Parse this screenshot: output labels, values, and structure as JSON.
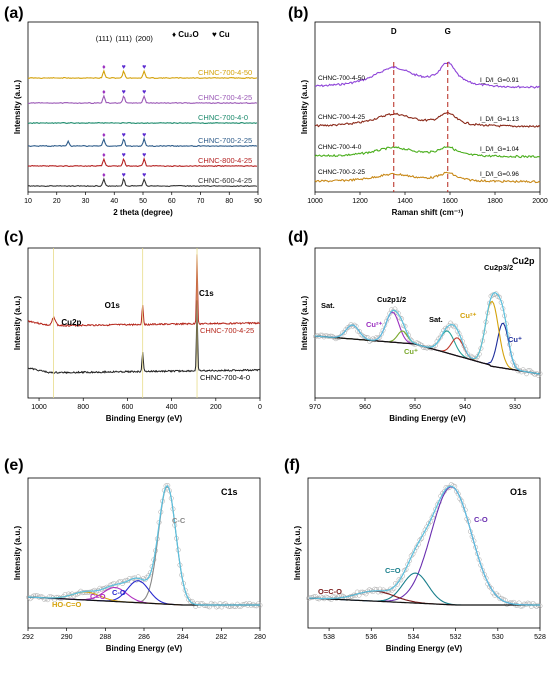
{
  "panels": [
    {
      "label": "(a)",
      "chart_data": {
        "type": "line",
        "xlabel": "2 theta (degree)",
        "ylabel": "Intensity (a.u.)",
        "xlim": [
          10,
          90
        ],
        "xticks": [
          "10",
          "20",
          "30",
          "40",
          "50",
          "60",
          "70",
          "80",
          "90"
        ],
        "legend": [
          {
            "name": "Cu₂O",
            "marker": "diamond",
            "color": "#9b30c0"
          },
          {
            "name": "Cu",
            "marker": "heart",
            "color": "#5b2bd0"
          }
        ],
        "legend_placement": "top-right",
        "peaks": [
          {
            "label": "(111)",
            "x": 36.4
          },
          {
            "label": "(111)",
            "x": 43.3
          },
          {
            "label": "(200)",
            "x": 50.4
          }
        ],
        "series": [
          {
            "name": "CHNC-700-4-50",
            "color": "#d4a20c",
            "peaks": [
              36.4,
              43.3,
              50.4
            ]
          },
          {
            "name": "CHNC-700-4-25",
            "color": "#9b59b6",
            "peaks": [
              36.4,
              43.3,
              50.4
            ]
          },
          {
            "name": "CHNC-700-4-0",
            "color": "#1b8a6b",
            "peaks": []
          },
          {
            "name": "CHNC-700-2-25",
            "color": "#2e5c8a",
            "peaks": [
              36.4,
              43.3,
              50.4
            ]
          },
          {
            "name": "CHNC-800-4-25",
            "color": "#b52222",
            "peaks": [
              36.4,
              43.3,
              50.4
            ]
          },
          {
            "name": "CHNC-600-4-25",
            "color": "#333333",
            "peaks": [
              36.4,
              43.3,
              50.4
            ]
          }
        ]
      }
    },
    {
      "label": "(b)",
      "chart_data": {
        "type": "line",
        "xlabel": "Raman shift (cm⁻¹)",
        "ylabel": "Intensity (a.u.)",
        "xlim": [
          1000,
          2000
        ],
        "xticks": [
          "1000",
          "1200",
          "1400",
          "1600",
          "1800",
          "2000"
        ],
        "bands": [
          {
            "label": "D",
            "x": 1350
          },
          {
            "label": "G",
            "x": 1590
          }
        ],
        "series": [
          {
            "name": "CHNC-700-4-50",
            "color": "#8e44d8",
            "ratio": "I_D/I_G=0.91"
          },
          {
            "name": "CHNC-700-4-25",
            "color": "#8b2a1a",
            "ratio": "I_D/I_G=1.13"
          },
          {
            "name": "CHNC-700-4-0",
            "color": "#4caf1f",
            "ratio": "I_D/I_G=1.04"
          },
          {
            "name": "CHNC-700-2-25",
            "color": "#c98a1a",
            "ratio": "I_D/I_G=0.96"
          }
        ]
      }
    },
    {
      "label": "(c)",
      "chart_data": {
        "type": "line",
        "xlabel": "Binding Energy (eV)",
        "ylabel": "Intensity (a.u.)",
        "xlim": [
          1050,
          0
        ],
        "xticks": [
          "1000",
          "800",
          "600",
          "400",
          "200",
          "0"
        ],
        "peak_labels": [
          {
            "label": "Cu2p",
            "x": 935
          },
          {
            "label": "O1s",
            "x": 531
          },
          {
            "label": "C1s",
            "x": 285
          }
        ],
        "series": [
          {
            "name": "CHNC-700-4-25",
            "color": "#b5261b"
          },
          {
            "name": "CHNC-700-4-0",
            "color": "#222222"
          }
        ]
      }
    },
    {
      "label": "(d)",
      "chart_data": {
        "type": "line",
        "title": "Cu2p",
        "xlabel": "Binding Energy (eV)",
        "ylabel": "Intensity (a.u.)",
        "xlim": [
          970,
          925
        ],
        "xticks": [
          "970",
          "960",
          "950",
          "940",
          "930"
        ],
        "components": [
          {
            "name": "Cu⁺",
            "center": 932.4,
            "color": "#1f2f9c"
          },
          {
            "name": "Cu²⁺",
            "center": 934.6,
            "color": "#d4a20c"
          },
          {
            "name": "Sat.",
            "center": 943.5,
            "color": "#2aa198"
          },
          {
            "name": "Sat.",
            "center": 941.5,
            "color": "#c0392b"
          },
          {
            "name": "Cu²⁺",
            "center": 954.5,
            "color": "#9b30c0"
          },
          {
            "name": "Cu⁺",
            "center": 952.5,
            "color": "#7aa82c"
          },
          {
            "name": "Sat.",
            "center": 962.5,
            "color": "#9b59b6"
          }
        ],
        "annotations": [
          "Cu2p3/2",
          "Cu2p1/2",
          "Sat.",
          "Sat.",
          "Cu²⁺",
          "Cu⁺",
          "Cu²⁺",
          "Cu⁺"
        ]
      }
    },
    {
      "label": "(e)",
      "chart_data": {
        "type": "line",
        "title": "C1s",
        "xlabel": "Binding Energy (eV)",
        "ylabel": "Intensity (a.u.)",
        "xlim": [
          292,
          280
        ],
        "xticks": [
          "292",
          "290",
          "288",
          "286",
          "284",
          "282",
          "280"
        ],
        "components": [
          {
            "name": "C-C",
            "center": 284.8,
            "color": "#888888"
          },
          {
            "name": "C-O",
            "center": 286.3,
            "color": "#2a2ad0"
          },
          {
            "name": "C=O",
            "center": 287.5,
            "color": "#b030c0"
          },
          {
            "name": "HO-C=O",
            "center": 289.0,
            "color": "#d4a20c"
          }
        ]
      }
    },
    {
      "label": "(f)",
      "chart_data": {
        "type": "line",
        "title": "O1s",
        "xlabel": "Binding Energy (eV)",
        "ylabel": "Intensity (a.u.)",
        "xlim": [
          539,
          528
        ],
        "xticks": [
          "538",
          "536",
          "534",
          "532",
          "530",
          "528"
        ],
        "components": [
          {
            "name": "C-O",
            "center": 532.2,
            "color": "#6a2fb0"
          },
          {
            "name": "C=O",
            "center": 533.9,
            "color": "#1a7f8c"
          },
          {
            "name": "O=C-O",
            "center": 535.8,
            "color": "#7a1a1a"
          }
        ]
      }
    }
  ]
}
